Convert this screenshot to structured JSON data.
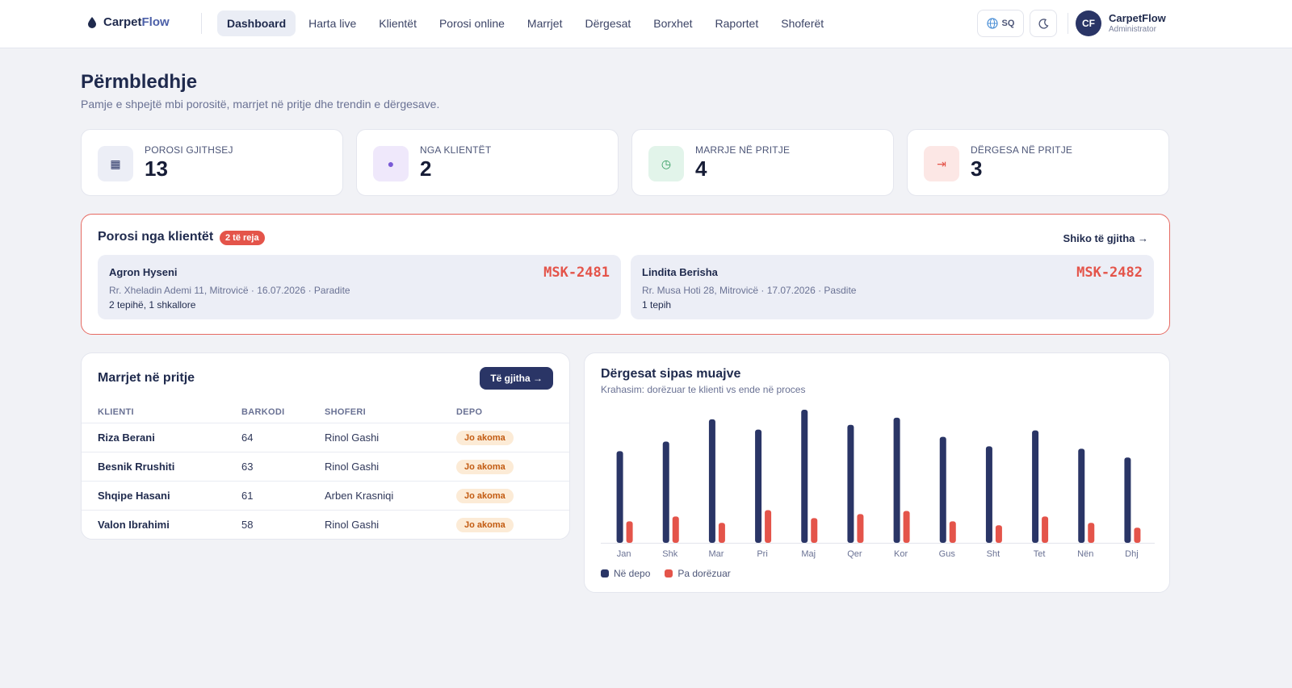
{
  "brand": {
    "name_part1": "Carpet",
    "name_part2": "Flow"
  },
  "nav": {
    "items": [
      "Dashboard",
      "Harta live",
      "Klientët",
      "Porosi online",
      "Marrjet",
      "Dërgesat",
      "Borxhet",
      "Raportet",
      "Shoferët"
    ],
    "active": "Dashboard"
  },
  "header_controls": {
    "language": "SQ",
    "globe_icon": "globe-icon",
    "theme_icon": "moon-icon"
  },
  "user": {
    "initials": "CF",
    "name": "CarpetFlow",
    "role": "Administrator"
  },
  "page": {
    "title": "Përmbledhje",
    "subtitle": "Pamje e shpejtë mbi porositë, marrjet në pritje dhe trendin e dërgesave."
  },
  "stats": [
    {
      "label": "POROSI GJITHSEJ",
      "value": "13",
      "icon": "grid-icon",
      "bg": "#eceef6",
      "fg": "#2a3566",
      "glyph": "▦"
    },
    {
      "label": "NGA KLIENTËT",
      "value": "2",
      "icon": "dot-icon",
      "bg": "#efe8fb",
      "fg": "#7a5ad6",
      "glyph": "●"
    },
    {
      "label": "MARRJE NË PRITJE",
      "value": "4",
      "icon": "clock-icon",
      "bg": "#e2f4ea",
      "fg": "#2f9a5c",
      "glyph": "◷"
    },
    {
      "label": "DËRGESA NË PRITJE",
      "value": "3",
      "icon": "arrow-to-icon",
      "bg": "#fce7e5",
      "fg": "#e4544a",
      "glyph": "⇥"
    }
  ],
  "client_orders": {
    "title": "Porosi nga klientët",
    "badge": "2 të reja",
    "see_all": "Shiko të gjitha →",
    "orders": [
      {
        "name": "Agron Hyseni",
        "code": "MSK-2481",
        "address": "Rr. Xheladin Ademi 11, Mitrovicë · 16.07.2026 · Paradite",
        "items": "2 tepihë, 1 shkallore"
      },
      {
        "name": "Lindita Berisha",
        "code": "MSK-2482",
        "address": "Rr. Musa Hoti 28, Mitrovicë · 17.07.2026 · Pasdite",
        "items": "1 tepih"
      }
    ]
  },
  "pending_pickups": {
    "title": "Marrjet në pritje",
    "button": "Të gjitha →",
    "columns": [
      "KLIENTI",
      "BARKODI",
      "SHOFERI",
      "DEPO"
    ],
    "rows": [
      {
        "client": "Riza Berani",
        "barcode": "64",
        "driver": "Rinol Gashi",
        "status": "Jo akoma"
      },
      {
        "client": "Besnik Rrushiti",
        "barcode": "63",
        "driver": "Rinol Gashi",
        "status": "Jo akoma"
      },
      {
        "client": "Shqipe Hasani",
        "barcode": "61",
        "driver": "Arben Krasniqi",
        "status": "Jo akoma"
      },
      {
        "client": "Valon Ibrahimi",
        "barcode": "58",
        "driver": "Rinol Gashi",
        "status": "Jo akoma"
      }
    ]
  },
  "chart_panel": {
    "title": "Dërgesat sipas muajve",
    "subtitle": "Krahasim: dorëzuar te klienti vs ende në proces"
  },
  "chart_data": {
    "type": "bar",
    "categories": [
      "Jan",
      "Shk",
      "Mar",
      "Pri",
      "Maj",
      "Qer",
      "Kor",
      "Gus",
      "Sht",
      "Tet",
      "Nën",
      "Dhj"
    ],
    "series": [
      {
        "name": "Në depo",
        "color": "#2a3566",
        "values": [
          115,
          127,
          155,
          142,
          167,
          148,
          157,
          133,
          121,
          141,
          118,
          107
        ]
      },
      {
        "name": "Pa dorëzuar",
        "color": "#e4544a",
        "values": [
          27,
          33,
          25,
          41,
          31,
          36,
          40,
          27,
          22,
          33,
          25,
          19
        ]
      }
    ],
    "ylim": [
      0,
      170
    ],
    "grid": false,
    "legend": "bottom-left"
  }
}
